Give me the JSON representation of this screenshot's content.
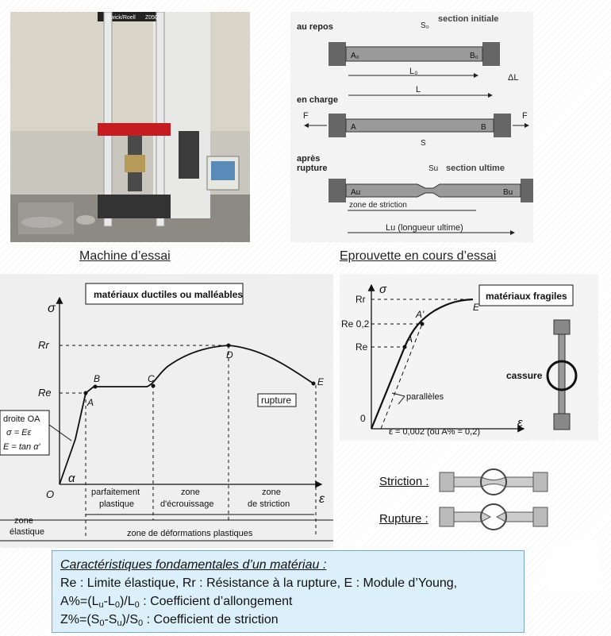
{
  "photo": {
    "brand_label": "Zwick/Roell",
    "model_label": "Z050",
    "caption": "Machine d’essai"
  },
  "specimen": {
    "caption": "Eprouvette en cours d’essai",
    "rest_label": "au repos",
    "initial_section": "section initiale",
    "S0": "S₀",
    "A0": "A₀",
    "B0": "B₀",
    "L0": "L₀",
    "dL": "ΔL",
    "load_label": "en charge",
    "L": "L",
    "F": "F",
    "S": "S",
    "A": "A",
    "B": "B",
    "after_label_1": "après",
    "after_label_2": "rupture",
    "ultimate_section": "section ultime",
    "Su": "Su",
    "Au": "Au",
    "Bu": "Bu",
    "necking_zone": "zone de striction",
    "Lu": "Lu (longueur ultime)"
  },
  "ductile": {
    "title": "matériaux ductiles ou malléables",
    "sigma": "σ",
    "epsilon": "ε",
    "Rr": "Rr",
    "Re": "Re",
    "O": "O",
    "alpha": "α",
    "A": "A",
    "B": "B",
    "C": "C",
    "D": "D",
    "E": "E",
    "rupture": "rupture",
    "law_1": "droite OA",
    "law_2": "σ = Eε",
    "law_3": "E = tan α′",
    "zone1a": "parfaitement",
    "zone1b": "plastique",
    "zone2a": "zone",
    "zone2b": "d'écrouissage",
    "zone3a": "zone",
    "zone3b": "de striction",
    "elastic_a": "zone",
    "elastic_b": "élastique",
    "plastic_zone": "zone de déformations plastiques"
  },
  "fragile": {
    "title": "matériaux fragiles",
    "sigma": "σ",
    "epsilon": "ε",
    "Rr": "Rr",
    "Re02": "Re 0,2",
    "Re": "Re",
    "O": "0",
    "A": "A",
    "Aprime": "A'",
    "E": "E",
    "parallel": "parallèles",
    "strain_note": "ε = 0,002 (ou A% = 0,2)",
    "cassure": "cassure"
  },
  "legend": {
    "striction": "Striction :",
    "rupture": "Rupture :"
  },
  "characteristics": {
    "title": "Caractéristiques fondamentales d’un matériau :",
    "line1": "Re : Limite élastique, Rr : Résistance à la rupture,  E : Module d’Young,",
    "line2_a": "A%=(L",
    "line2_b": "u",
    "line2_c": "-L",
    "line2_d": "0",
    "line2_e": ")/L",
    "line2_f": "0",
    "line2_g": " : Coefficient d’allongement",
    "line3_a": "Z%=(S",
    "line3_b": "0",
    "line3_c": "-S",
    "line3_d": "u",
    "line3_e": ")/S",
    "line3_f": "0",
    "line3_g": " : Coefficient de striction"
  }
}
